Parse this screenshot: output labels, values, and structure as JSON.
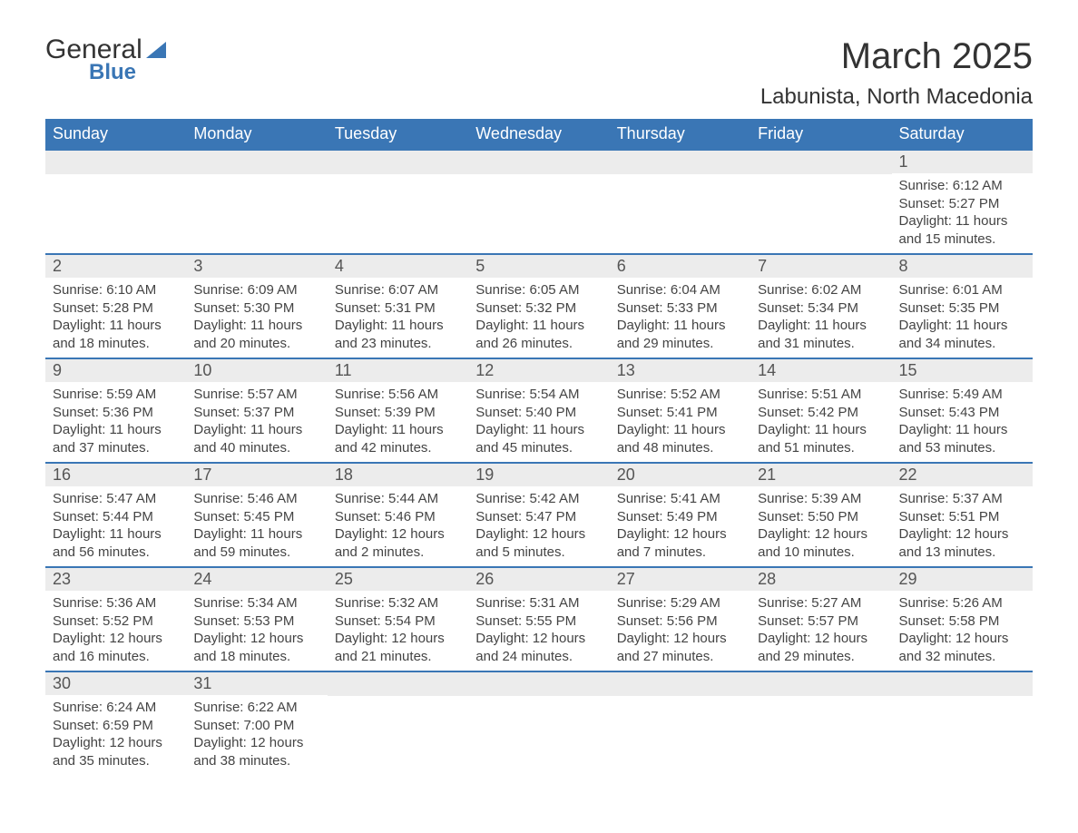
{
  "logo": {
    "line1": "General",
    "line2": "Blue"
  },
  "title": "March 2025",
  "location": "Labunista, North Macedonia",
  "colors": {
    "header_bg": "#3a76b5",
    "header_text": "#ffffff",
    "daynum_bg": "#ececec",
    "border": "#3a76b5",
    "text": "#333333"
  },
  "typography": {
    "title_fontsize": 40,
    "location_fontsize": 24,
    "header_fontsize": 18,
    "daynum_fontsize": 18,
    "body_fontsize": 15
  },
  "day_headers": [
    "Sunday",
    "Monday",
    "Tuesday",
    "Wednesday",
    "Thursday",
    "Friday",
    "Saturday"
  ],
  "weeks": [
    [
      null,
      null,
      null,
      null,
      null,
      null,
      {
        "day": "1",
        "sunrise": "Sunrise: 6:12 AM",
        "sunset": "Sunset: 5:27 PM",
        "daylight1": "Daylight: 11 hours",
        "daylight2": "and 15 minutes."
      }
    ],
    [
      {
        "day": "2",
        "sunrise": "Sunrise: 6:10 AM",
        "sunset": "Sunset: 5:28 PM",
        "daylight1": "Daylight: 11 hours",
        "daylight2": "and 18 minutes."
      },
      {
        "day": "3",
        "sunrise": "Sunrise: 6:09 AM",
        "sunset": "Sunset: 5:30 PM",
        "daylight1": "Daylight: 11 hours",
        "daylight2": "and 20 minutes."
      },
      {
        "day": "4",
        "sunrise": "Sunrise: 6:07 AM",
        "sunset": "Sunset: 5:31 PM",
        "daylight1": "Daylight: 11 hours",
        "daylight2": "and 23 minutes."
      },
      {
        "day": "5",
        "sunrise": "Sunrise: 6:05 AM",
        "sunset": "Sunset: 5:32 PM",
        "daylight1": "Daylight: 11 hours",
        "daylight2": "and 26 minutes."
      },
      {
        "day": "6",
        "sunrise": "Sunrise: 6:04 AM",
        "sunset": "Sunset: 5:33 PM",
        "daylight1": "Daylight: 11 hours",
        "daylight2": "and 29 minutes."
      },
      {
        "day": "7",
        "sunrise": "Sunrise: 6:02 AM",
        "sunset": "Sunset: 5:34 PM",
        "daylight1": "Daylight: 11 hours",
        "daylight2": "and 31 minutes."
      },
      {
        "day": "8",
        "sunrise": "Sunrise: 6:01 AM",
        "sunset": "Sunset: 5:35 PM",
        "daylight1": "Daylight: 11 hours",
        "daylight2": "and 34 minutes."
      }
    ],
    [
      {
        "day": "9",
        "sunrise": "Sunrise: 5:59 AM",
        "sunset": "Sunset: 5:36 PM",
        "daylight1": "Daylight: 11 hours",
        "daylight2": "and 37 minutes."
      },
      {
        "day": "10",
        "sunrise": "Sunrise: 5:57 AM",
        "sunset": "Sunset: 5:37 PM",
        "daylight1": "Daylight: 11 hours",
        "daylight2": "and 40 minutes."
      },
      {
        "day": "11",
        "sunrise": "Sunrise: 5:56 AM",
        "sunset": "Sunset: 5:39 PM",
        "daylight1": "Daylight: 11 hours",
        "daylight2": "and 42 minutes."
      },
      {
        "day": "12",
        "sunrise": "Sunrise: 5:54 AM",
        "sunset": "Sunset: 5:40 PM",
        "daylight1": "Daylight: 11 hours",
        "daylight2": "and 45 minutes."
      },
      {
        "day": "13",
        "sunrise": "Sunrise: 5:52 AM",
        "sunset": "Sunset: 5:41 PM",
        "daylight1": "Daylight: 11 hours",
        "daylight2": "and 48 minutes."
      },
      {
        "day": "14",
        "sunrise": "Sunrise: 5:51 AM",
        "sunset": "Sunset: 5:42 PM",
        "daylight1": "Daylight: 11 hours",
        "daylight2": "and 51 minutes."
      },
      {
        "day": "15",
        "sunrise": "Sunrise: 5:49 AM",
        "sunset": "Sunset: 5:43 PM",
        "daylight1": "Daylight: 11 hours",
        "daylight2": "and 53 minutes."
      }
    ],
    [
      {
        "day": "16",
        "sunrise": "Sunrise: 5:47 AM",
        "sunset": "Sunset: 5:44 PM",
        "daylight1": "Daylight: 11 hours",
        "daylight2": "and 56 minutes."
      },
      {
        "day": "17",
        "sunrise": "Sunrise: 5:46 AM",
        "sunset": "Sunset: 5:45 PM",
        "daylight1": "Daylight: 11 hours",
        "daylight2": "and 59 minutes."
      },
      {
        "day": "18",
        "sunrise": "Sunrise: 5:44 AM",
        "sunset": "Sunset: 5:46 PM",
        "daylight1": "Daylight: 12 hours",
        "daylight2": "and 2 minutes."
      },
      {
        "day": "19",
        "sunrise": "Sunrise: 5:42 AM",
        "sunset": "Sunset: 5:47 PM",
        "daylight1": "Daylight: 12 hours",
        "daylight2": "and 5 minutes."
      },
      {
        "day": "20",
        "sunrise": "Sunrise: 5:41 AM",
        "sunset": "Sunset: 5:49 PM",
        "daylight1": "Daylight: 12 hours",
        "daylight2": "and 7 minutes."
      },
      {
        "day": "21",
        "sunrise": "Sunrise: 5:39 AM",
        "sunset": "Sunset: 5:50 PM",
        "daylight1": "Daylight: 12 hours",
        "daylight2": "and 10 minutes."
      },
      {
        "day": "22",
        "sunrise": "Sunrise: 5:37 AM",
        "sunset": "Sunset: 5:51 PM",
        "daylight1": "Daylight: 12 hours",
        "daylight2": "and 13 minutes."
      }
    ],
    [
      {
        "day": "23",
        "sunrise": "Sunrise: 5:36 AM",
        "sunset": "Sunset: 5:52 PM",
        "daylight1": "Daylight: 12 hours",
        "daylight2": "and 16 minutes."
      },
      {
        "day": "24",
        "sunrise": "Sunrise: 5:34 AM",
        "sunset": "Sunset: 5:53 PM",
        "daylight1": "Daylight: 12 hours",
        "daylight2": "and 18 minutes."
      },
      {
        "day": "25",
        "sunrise": "Sunrise: 5:32 AM",
        "sunset": "Sunset: 5:54 PM",
        "daylight1": "Daylight: 12 hours",
        "daylight2": "and 21 minutes."
      },
      {
        "day": "26",
        "sunrise": "Sunrise: 5:31 AM",
        "sunset": "Sunset: 5:55 PM",
        "daylight1": "Daylight: 12 hours",
        "daylight2": "and 24 minutes."
      },
      {
        "day": "27",
        "sunrise": "Sunrise: 5:29 AM",
        "sunset": "Sunset: 5:56 PM",
        "daylight1": "Daylight: 12 hours",
        "daylight2": "and 27 minutes."
      },
      {
        "day": "28",
        "sunrise": "Sunrise: 5:27 AM",
        "sunset": "Sunset: 5:57 PM",
        "daylight1": "Daylight: 12 hours",
        "daylight2": "and 29 minutes."
      },
      {
        "day": "29",
        "sunrise": "Sunrise: 5:26 AM",
        "sunset": "Sunset: 5:58 PM",
        "daylight1": "Daylight: 12 hours",
        "daylight2": "and 32 minutes."
      }
    ],
    [
      {
        "day": "30",
        "sunrise": "Sunrise: 6:24 AM",
        "sunset": "Sunset: 6:59 PM",
        "daylight1": "Daylight: 12 hours",
        "daylight2": "and 35 minutes."
      },
      {
        "day": "31",
        "sunrise": "Sunrise: 6:22 AM",
        "sunset": "Sunset: 7:00 PM",
        "daylight1": "Daylight: 12 hours",
        "daylight2": "and 38 minutes."
      },
      null,
      null,
      null,
      null,
      null
    ]
  ]
}
